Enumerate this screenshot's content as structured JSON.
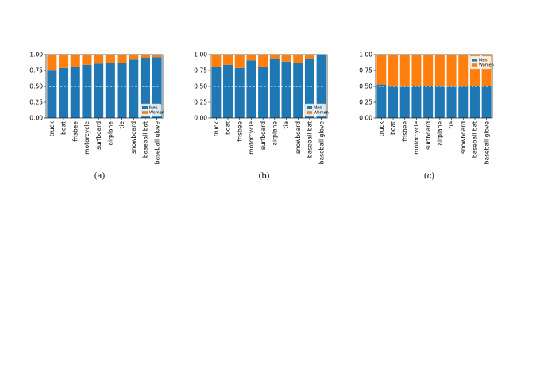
{
  "figure": {
    "captions": [
      "(a)",
      "(b)",
      "(c)"
    ],
    "colors": {
      "men": "#1f77b4",
      "women": "#ff7f0e",
      "reference_line": "#ffffff",
      "axis": "#000000"
    }
  },
  "chart_data": [
    {
      "type": "bar",
      "stacked": true,
      "categories": [
        "truck",
        "boat",
        "frisbee",
        "motorcycle",
        "surfboard",
        "airplane",
        "tie",
        "snowboard",
        "baseball bat",
        "baseball glove"
      ],
      "series": [
        {
          "name": "Men",
          "values": [
            0.76,
            0.79,
            0.81,
            0.84,
            0.86,
            0.87,
            0.87,
            0.92,
            0.95,
            0.96
          ]
        },
        {
          "name": "Women",
          "values": [
            0.24,
            0.21,
            0.19,
            0.16,
            0.14,
            0.13,
            0.13,
            0.08,
            0.05,
            0.04
          ]
        }
      ],
      "reference_line": 0.5,
      "ylim": [
        0,
        1
      ],
      "yticks": [
        "0.00",
        "0.25",
        "0.50",
        "0.75",
        "1.00"
      ],
      "legend_position": "bottom-right",
      "caption": "(a)"
    },
    {
      "type": "bar",
      "stacked": true,
      "categories": [
        "truck",
        "boat",
        "frisbee",
        "motorcycle",
        "surfboard",
        "airplane",
        "tie",
        "snowboard",
        "baseball bat",
        "baseball glove"
      ],
      "series": [
        {
          "name": "Men",
          "values": [
            0.81,
            0.84,
            0.79,
            0.91,
            0.81,
            0.93,
            0.89,
            0.87,
            0.93,
            0.99
          ]
        },
        {
          "name": "Women",
          "values": [
            0.19,
            0.16,
            0.21,
            0.09,
            0.19,
            0.07,
            0.11,
            0.13,
            0.07,
            0.01
          ]
        }
      ],
      "reference_line": 0.5,
      "ylim": [
        0,
        1
      ],
      "yticks": [
        "0.00",
        "0.25",
        "0.50",
        "0.75",
        "1.00"
      ],
      "legend_position": "bottom-right",
      "caption": "(b)"
    },
    {
      "type": "bar",
      "stacked": true,
      "categories": [
        "truck",
        "boat",
        "frisbee",
        "motorcycle",
        "surfboard",
        "airplane",
        "tie",
        "snowboard",
        "baseball bat",
        "baseball glove"
      ],
      "series": [
        {
          "name": "Men",
          "values": [
            0.53,
            0.5,
            0.5,
            0.5,
            0.5,
            0.5,
            0.5,
            0.5,
            0.5,
            0.5
          ]
        },
        {
          "name": "Women",
          "values": [
            0.47,
            0.5,
            0.5,
            0.5,
            0.5,
            0.5,
            0.5,
            0.5,
            0.5,
            0.5
          ]
        }
      ],
      "reference_line": 0.5,
      "ylim": [
        0,
        1
      ],
      "yticks": [
        "0.00",
        "0.25",
        "0.50",
        "0.75",
        "1.00"
      ],
      "legend_position": "top-right",
      "caption": "(c)"
    }
  ]
}
